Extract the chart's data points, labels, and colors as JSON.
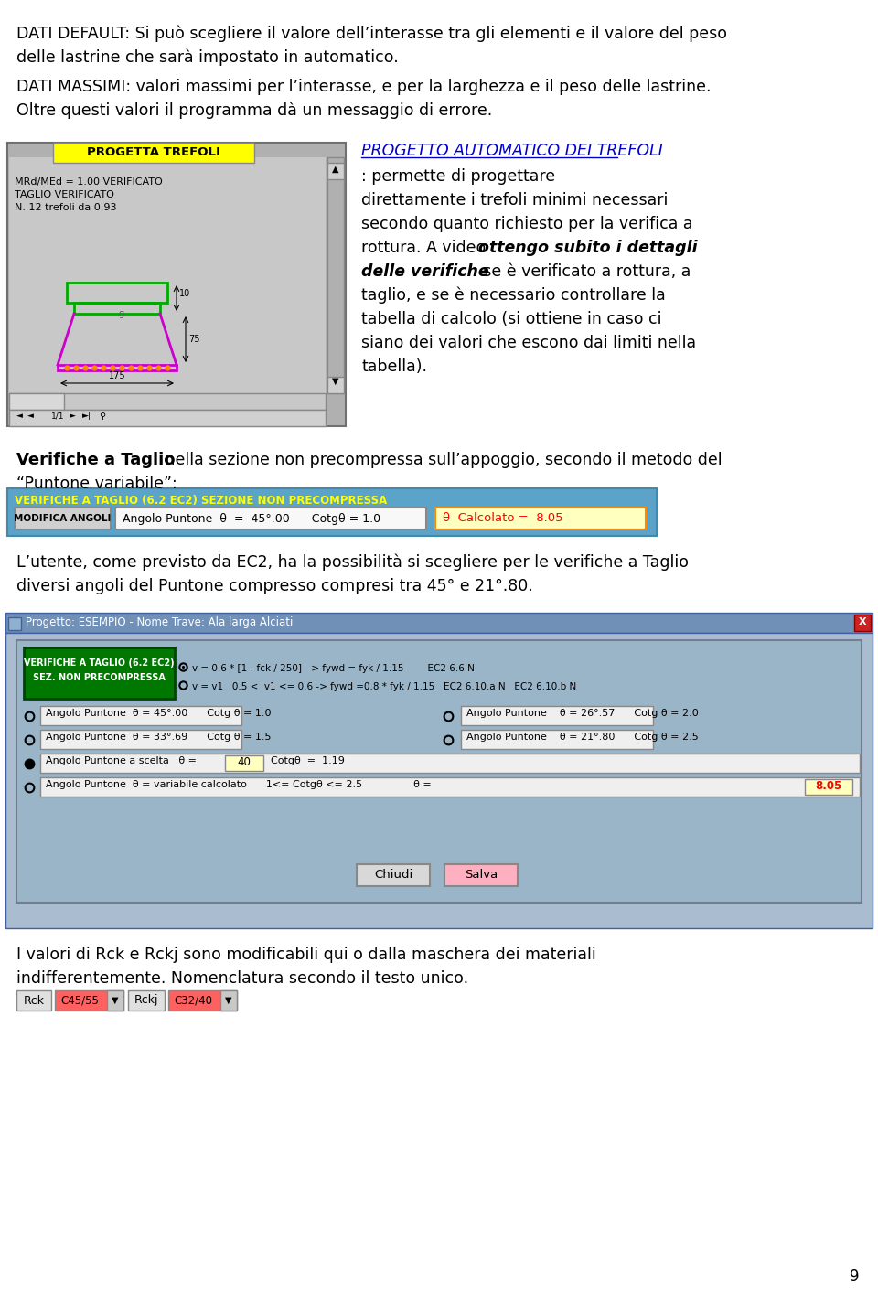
{
  "page_num": "9",
  "bg_color": "#ffffff",
  "text_color": "#000000",
  "section_title_italic_blue": "PROGETTO AUTOMATICO DEI TREFOLI",
  "bar1_bg": "#5ba3c9",
  "bar1_label": "VERIFICHE A TAGLIO (6.2 EC2) SEZIONE NON PRECOMPRESSA",
  "bar1_label_color": "#ffff00",
  "modifica_btn": "MODIFICA ANGOLI",
  "angolo_text": "Angolo Puntone  θ  =  45°.00      Cotgθ = 1.0",
  "calcolato_text": "θ  Calcolato =  8.05",
  "calcolato_bg": "#ffffc0",
  "calcolato_color": "#ff0000",
  "dialog_title": "Progetto: ESEMPIO - Nome Trave: Ala larga Alciati",
  "dialog_bg": "#b0c4de",
  "radio1_text": "v = 0.6 * [1 - fck / 250]  -> fywd = fyk / 1.15        EC2 6.6 N",
  "radio2_text": "v = v1   0.5 <  v1 <= 0.6 -> fywd =0.8 * fyk / 1.15   EC2 6.10.a N   EC2 6.10.b N",
  "row1_left": "Angolo Puntone  θ = 45°.00      Cotg θ = 1.0",
  "row1_right": "Angolo Puntone    θ = 26°.57      Cotg θ = 2.0",
  "row2_left": "Angolo Puntone  θ = 33°.69      Cotg θ = 1.5",
  "row2_right": "Angolo Puntone    θ = 21°.80      Cotg θ = 2.5",
  "row3_text": "Angolo Puntone a scelta   θ =",
  "row3_val": "40",
  "row3_val_bg": "#ffffc0",
  "row3_cotg": "Cotgθ  =  1.19",
  "row4_text": "Angolo Puntone  θ = variabile calcolato      1<= Cotgθ <= 2.5                θ =",
  "row4_val": "8.05",
  "row4_val_bg": "#ffffc0",
  "row4_val_color": "#ff0000",
  "chiudi_btn": "Chiudi",
  "salva_btn": "Salva",
  "salva_bg": "#ffb0c0",
  "rck_btn": "Rck",
  "rck_val": "C45/55",
  "rck_val_bg": "#ff6060",
  "rckj_btn": "Rckj",
  "rckj_val": "C32/40",
  "rckj_val_bg": "#ff6060",
  "screen_bg": "#c8c8c8",
  "screen_title_bg": "#ffff00",
  "screen_title_text": "PROGETTA TREFOLI"
}
